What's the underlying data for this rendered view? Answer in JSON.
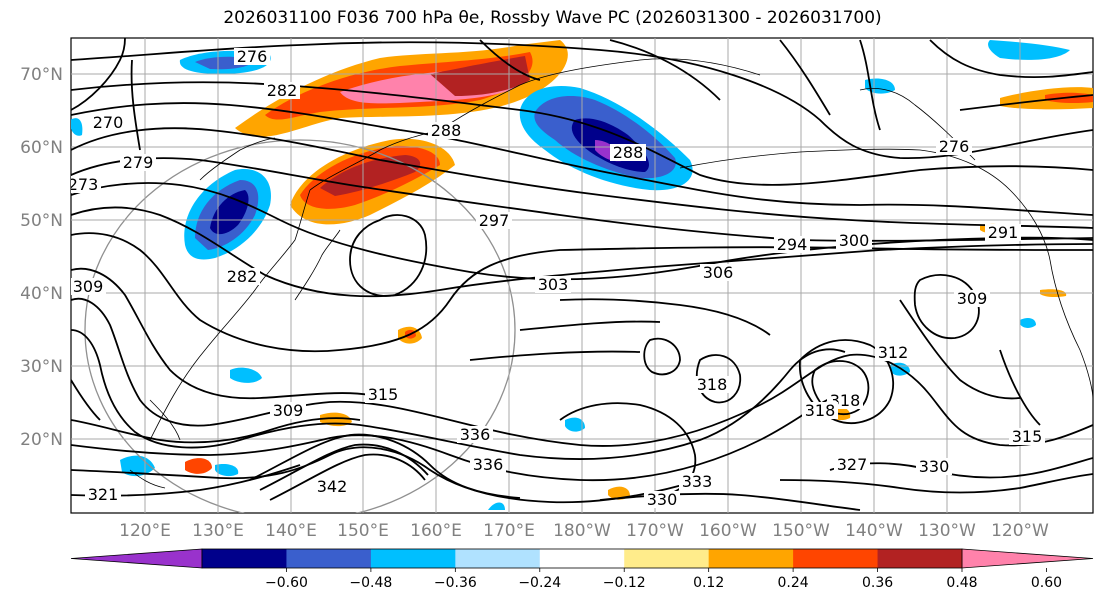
{
  "title": "2026031100 F036 700 hPa θe, Rossby Wave PC (2026031300 - 2026031700)",
  "axes": {
    "lat_labels": [
      "70°N",
      "60°N",
      "50°N",
      "40°N",
      "30°N",
      "20°N"
    ],
    "lon_labels": [
      "120°E",
      "130°E",
      "140°E",
      "150°E",
      "160°E",
      "170°E",
      "180°W",
      "170°W",
      "160°W",
      "150°W",
      "140°W",
      "130°W",
      "120°W"
    ]
  },
  "contour_labels": [
    "276",
    "282",
    "270",
    "279",
    "273",
    "288",
    "288",
    "297",
    "276",
    "291",
    "300",
    "294",
    "303",
    "306",
    "309",
    "309",
    "282",
    "315",
    "312",
    "318",
    "318",
    "318",
    "309",
    "321",
    "336",
    "336",
    "342",
    "327",
    "330",
    "333",
    "330",
    "315"
  ],
  "colorbar": {
    "ticks": [
      "−0.60",
      "−0.48",
      "−0.36",
      "−0.24",
      "−0.12",
      "0.12",
      "0.24",
      "0.36",
      "0.48",
      "0.60"
    ],
    "colors": [
      "#9932cc",
      "#00008b",
      "#3a5fcd",
      "#00bfff",
      "#b0e2ff",
      "#ffffff",
      "#ffec8b",
      "#ffa500",
      "#ff4500",
      "#b22222",
      "#ff82ab"
    ]
  }
}
